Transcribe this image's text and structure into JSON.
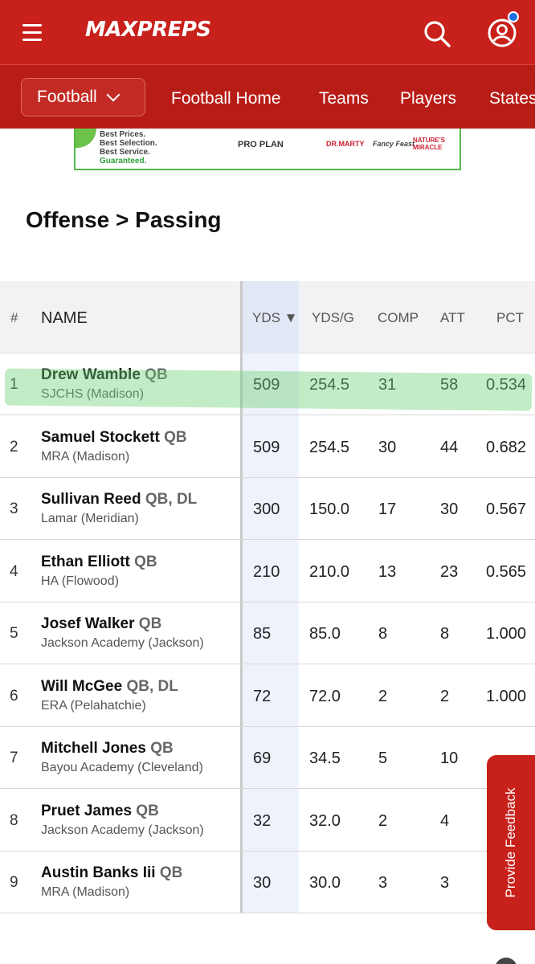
{
  "header": {
    "logo_text": "MAXPREPS",
    "nav": {
      "sport": "Football",
      "links": [
        "Football Home",
        "Teams",
        "Players",
        "States"
      ]
    }
  },
  "ad": {
    "lines": [
      "Best Prices.",
      "Best Selection.",
      "Best Service."
    ],
    "guarantee": "Guaranteed.",
    "brands": [
      "PRO PLAN",
      "DR.MARTY",
      "Fancy Feast",
      "NATURE'S MIRACLE"
    ]
  },
  "page": {
    "title": "Offense > Passing"
  },
  "table": {
    "columns": {
      "rank": "#",
      "name": "NAME",
      "yds": "YDS ▼",
      "ydsg": "YDS/G",
      "comp": "COMP",
      "att": "ATT",
      "pct": "PCT"
    },
    "rows": [
      {
        "rank": "1",
        "name": "Drew Wamble",
        "pos": "QB",
        "school": "SJCHS (Madison)",
        "yds": "509",
        "ydsg": "254.5",
        "comp": "31",
        "att": "58",
        "pct": "0.534"
      },
      {
        "rank": "2",
        "name": "Samuel Stockett",
        "pos": "QB",
        "school": "MRA (Madison)",
        "yds": "509",
        "ydsg": "254.5",
        "comp": "30",
        "att": "44",
        "pct": "0.682"
      },
      {
        "rank": "3",
        "name": "Sullivan Reed",
        "pos": "QB, DL",
        "school": "Lamar (Meridian)",
        "yds": "300",
        "ydsg": "150.0",
        "comp": "17",
        "att": "30",
        "pct": "0.567"
      },
      {
        "rank": "4",
        "name": "Ethan Elliott",
        "pos": "QB",
        "school": "HA (Flowood)",
        "yds": "210",
        "ydsg": "210.0",
        "comp": "13",
        "att": "23",
        "pct": "0.565"
      },
      {
        "rank": "5",
        "name": "Josef Walker",
        "pos": "QB",
        "school": "Jackson Academy (Jackson)",
        "yds": "85",
        "ydsg": "85.0",
        "comp": "8",
        "att": "8",
        "pct": "1.000"
      },
      {
        "rank": "6",
        "name": "Will McGee",
        "pos": "QB, DL",
        "school": "ERA (Pelahatchie)",
        "yds": "72",
        "ydsg": "72.0",
        "comp": "2",
        "att": "2",
        "pct": "1.000"
      },
      {
        "rank": "7",
        "name": "Mitchell Jones",
        "pos": "QB",
        "school": "Bayou Academy (Cleveland)",
        "yds": "69",
        "ydsg": "34.5",
        "comp": "5",
        "att": "10",
        "pct": ""
      },
      {
        "rank": "8",
        "name": "Pruet James",
        "pos": "QB",
        "school": "Jackson Academy (Jackson)",
        "yds": "32",
        "ydsg": "32.0",
        "comp": "2",
        "att": "4",
        "pct": ""
      },
      {
        "rank": "9",
        "name": "Austin Banks Iii",
        "pos": "QB",
        "school": "MRA (Madison)",
        "yds": "30",
        "ydsg": "30.0",
        "comp": "3",
        "att": "3",
        "pct": ""
      }
    ]
  },
  "feedback": {
    "label": "Provide Feedback"
  },
  "colors": {
    "brand_red": "#c8201a",
    "nav_red": "#b81c17",
    "highlight_green": "#6ed278"
  }
}
